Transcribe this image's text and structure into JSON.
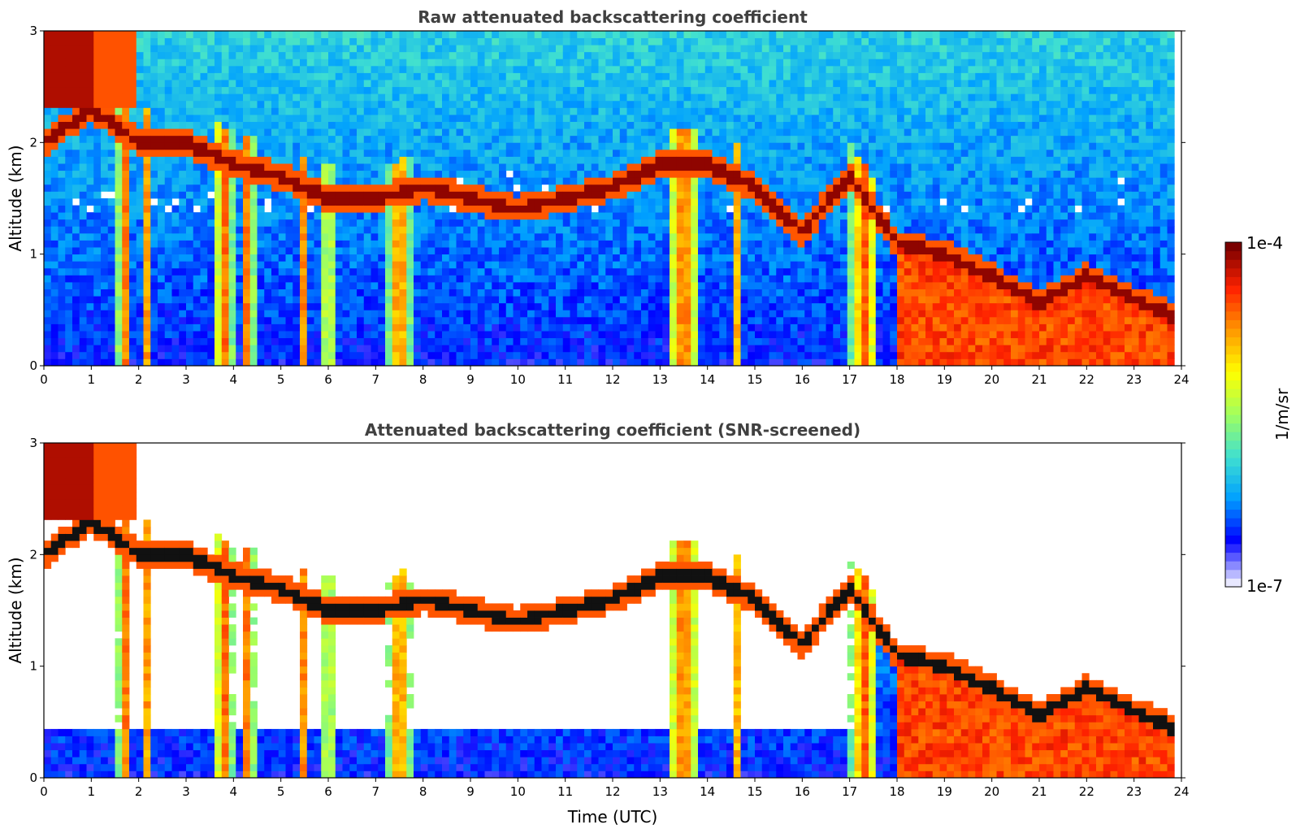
{
  "chart_data": [
    {
      "type": "heatmap",
      "title": "Raw attenuated backscattering coefficient",
      "xlabel": "",
      "ylabel": "Altitude (km)",
      "xlim": [
        0,
        24
      ],
      "ylim": [
        0,
        3
      ],
      "xticks": [
        "0",
        "1",
        "2",
        "3",
        "4",
        "5",
        "6",
        "7",
        "8",
        "9",
        "10",
        "11",
        "12",
        "13",
        "14",
        "15",
        "16",
        "17",
        "18",
        "19",
        "20",
        "21",
        "22",
        "23",
        "24"
      ],
      "yticks": [
        "0",
        "1",
        "2",
        "3"
      ],
      "colorscale": "jet",
      "boundary_layer_cloud_altitude_km": [
        [
          0.0,
          2.0
        ],
        [
          1.0,
          2.3
        ],
        [
          2.0,
          2.0
        ],
        [
          3.0,
          2.0
        ],
        [
          4.0,
          1.8
        ],
        [
          5.0,
          1.7
        ],
        [
          6.0,
          1.5
        ],
        [
          7.0,
          1.5
        ],
        [
          8.0,
          1.6
        ],
        [
          9.0,
          1.5
        ],
        [
          10.0,
          1.4
        ],
        [
          11.0,
          1.5
        ],
        [
          12.0,
          1.6
        ],
        [
          13.0,
          1.8
        ],
        [
          14.0,
          1.8
        ],
        [
          15.0,
          1.6
        ],
        [
          16.0,
          1.2
        ],
        [
          17.0,
          1.7
        ],
        [
          18.0,
          1.1
        ],
        [
          19.0,
          1.0
        ],
        [
          20.0,
          0.8
        ],
        [
          21.0,
          0.55
        ],
        [
          22.0,
          0.8
        ],
        [
          23.0,
          0.6
        ],
        [
          23.8,
          0.45
        ]
      ]
    },
    {
      "type": "heatmap",
      "title": "Attenuated backscattering coefficient (SNR-screened)",
      "xlabel": "Time (UTC)",
      "ylabel": "Altitude (km)",
      "xlim": [
        0,
        24
      ],
      "ylim": [
        0,
        3
      ],
      "xticks": [
        "0",
        "1",
        "2",
        "3",
        "4",
        "5",
        "6",
        "7",
        "8",
        "9",
        "10",
        "11",
        "12",
        "13",
        "14",
        "15",
        "16",
        "17",
        "18",
        "19",
        "20",
        "21",
        "22",
        "23",
        "24"
      ],
      "yticks": [
        "0",
        "1",
        "2",
        "3"
      ],
      "colorscale": "jet",
      "screened": true
    }
  ],
  "colorbar": {
    "label": "1/m/sr",
    "max_label": "1e-4",
    "min_label": "1e-7",
    "colors": [
      "#e8e8ff",
      "#0000ff",
      "#00a0ff",
      "#40e0d0",
      "#a0ff60",
      "#ffff00",
      "#ff9900",
      "#ff2200",
      "#7a0000"
    ]
  }
}
